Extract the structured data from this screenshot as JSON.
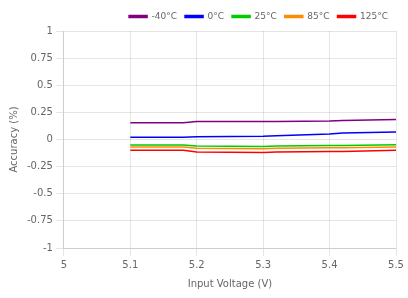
{
  "chart_data": {
    "type": "line",
    "xlabel": "Input Voltage (V)",
    "ylabel": "Accuracy (%)",
    "x": [
      5.1,
      5.13,
      5.18,
      5.2,
      5.3,
      5.32,
      5.4,
      5.42,
      5.5
    ],
    "series": [
      {
        "name": "-40°C",
        "color": "#800080",
        "values": [
          0.155,
          0.155,
          0.155,
          0.165,
          0.165,
          0.165,
          0.17,
          0.175,
          0.185
        ]
      },
      {
        "name": "0°C",
        "color": "#0000FF",
        "values": [
          0.02,
          0.02,
          0.02,
          0.025,
          0.03,
          0.035,
          0.05,
          0.06,
          0.07
        ]
      },
      {
        "name": "25°C",
        "color": "#00CC00",
        "values": [
          -0.05,
          -0.05,
          -0.05,
          -0.06,
          -0.065,
          -0.06,
          -0.055,
          -0.055,
          -0.048
        ]
      },
      {
        "name": "85°C",
        "color": "#FF8C00",
        "values": [
          -0.07,
          -0.07,
          -0.07,
          -0.08,
          -0.085,
          -0.08,
          -0.075,
          -0.075,
          -0.07
        ]
      },
      {
        "name": "125°C",
        "color": "#FF0000",
        "values": [
          -0.1,
          -0.1,
          -0.1,
          -0.115,
          -0.12,
          -0.115,
          -0.11,
          -0.11,
          -0.1
        ]
      }
    ],
    "xlim": [
      5.0,
      5.5
    ],
    "ylim": [
      -1.0,
      1.0
    ],
    "xticks": [
      5.0,
      5.1,
      5.2,
      5.3,
      5.4,
      5.5
    ],
    "yticks": [
      -1.0,
      -0.75,
      -0.5,
      -0.25,
      0.0,
      0.25,
      0.5,
      0.75,
      1.0
    ],
    "grid": true,
    "legend": "upper right"
  }
}
